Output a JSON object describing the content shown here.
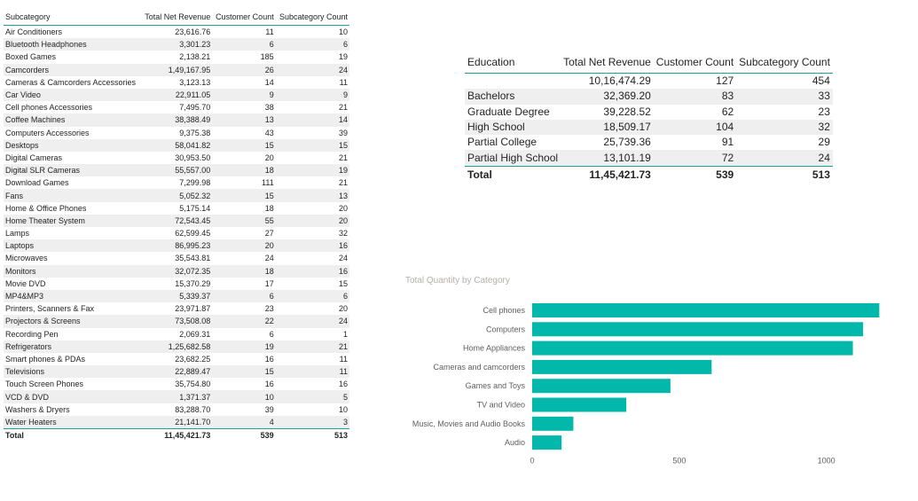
{
  "subcategory_table": {
    "headers": [
      "Subcategory",
      "Total Net Revenue",
      "Customer Count",
      "Subcategory Count"
    ],
    "rows": [
      [
        "Air Conditioners",
        "23,616.76",
        "11",
        "10"
      ],
      [
        "Bluetooth Headphones",
        "3,301.23",
        "6",
        "6"
      ],
      [
        "Boxed Games",
        "2,138.21",
        "185",
        "19"
      ],
      [
        "Camcorders",
        "1,49,167.95",
        "26",
        "24"
      ],
      [
        "Cameras & Camcorders Accessories",
        "3,123.13",
        "14",
        "11"
      ],
      [
        "Car Video",
        "22,911.05",
        "9",
        "9"
      ],
      [
        "Cell phones Accessories",
        "7,495.70",
        "38",
        "21"
      ],
      [
        "Coffee Machines",
        "38,388.49",
        "13",
        "14"
      ],
      [
        "Computers Accessories",
        "9,375.38",
        "43",
        "39"
      ],
      [
        "Desktops",
        "58,041.82",
        "15",
        "15"
      ],
      [
        "Digital Cameras",
        "30,953.50",
        "20",
        "21"
      ],
      [
        "Digital SLR Cameras",
        "55,557.00",
        "18",
        "19"
      ],
      [
        "Download Games",
        "7,299.98",
        "111",
        "21"
      ],
      [
        "Fans",
        "5,052.32",
        "15",
        "13"
      ],
      [
        "Home & Office Phones",
        "5,175.14",
        "18",
        "20"
      ],
      [
        "Home Theater System",
        "72,543.45",
        "55",
        "20"
      ],
      [
        "Lamps",
        "62,599.45",
        "27",
        "32"
      ],
      [
        "Laptops",
        "86,995.23",
        "20",
        "16"
      ],
      [
        "Microwaves",
        "35,543.81",
        "24",
        "24"
      ],
      [
        "Monitors",
        "32,072.35",
        "18",
        "16"
      ],
      [
        "Movie DVD",
        "15,370.29",
        "17",
        "15"
      ],
      [
        "MP4&MP3",
        "5,339.37",
        "6",
        "6"
      ],
      [
        "Printers, Scanners & Fax",
        "23,971.87",
        "23",
        "20"
      ],
      [
        "Projectors & Screens",
        "73,508.08",
        "22",
        "24"
      ],
      [
        "Recording Pen",
        "2,069.31",
        "6",
        "1"
      ],
      [
        "Refrigerators",
        "1,25,682.58",
        "19",
        "21"
      ],
      [
        "Smart phones & PDAs",
        "23,682.25",
        "16",
        "11"
      ],
      [
        "Televisions",
        "22,889.47",
        "15",
        "11"
      ],
      [
        "Touch Screen Phones",
        "35,754.80",
        "16",
        "16"
      ],
      [
        "VCD & DVD",
        "1,371.37",
        "10",
        "5"
      ],
      [
        "Washers & Dryers",
        "83,288.70",
        "39",
        "10"
      ],
      [
        "Water Heaters",
        "21,141.70",
        "4",
        "3"
      ]
    ],
    "total": [
      "Total",
      "11,45,421.73",
      "539",
      "513"
    ]
  },
  "education_table": {
    "headers": [
      "Education",
      "Total Net Revenue",
      "Customer Count",
      "Subcategory Count"
    ],
    "rows": [
      [
        "",
        "10,16,474.29",
        "127",
        "454"
      ],
      [
        "Bachelors",
        "32,369.20",
        "83",
        "33"
      ],
      [
        "Graduate Degree",
        "39,228.52",
        "62",
        "23"
      ],
      [
        "High School",
        "18,509.17",
        "104",
        "32"
      ],
      [
        "Partial College",
        "25,739.36",
        "91",
        "29"
      ],
      [
        "Partial High School",
        "13,101.19",
        "72",
        "24"
      ]
    ],
    "total": [
      "Total",
      "11,45,421.73",
      "539",
      "513"
    ]
  },
  "chart_data": {
    "type": "bar",
    "orientation": "horizontal",
    "title": "Total Quantity by Category",
    "categories": [
      "Cell phones",
      "Computers",
      "Home Appliances",
      "Cameras and camcorders",
      "Games and Toys",
      "TV and Video",
      "Music, Movies and Audio Books",
      "Audio"
    ],
    "values": [
      1180,
      1125,
      1090,
      610,
      470,
      320,
      140,
      100
    ],
    "xlim": [
      0,
      1200
    ],
    "xticks": [
      0,
      500,
      1000
    ],
    "grid": false,
    "bar_color": "#01b8aa"
  }
}
